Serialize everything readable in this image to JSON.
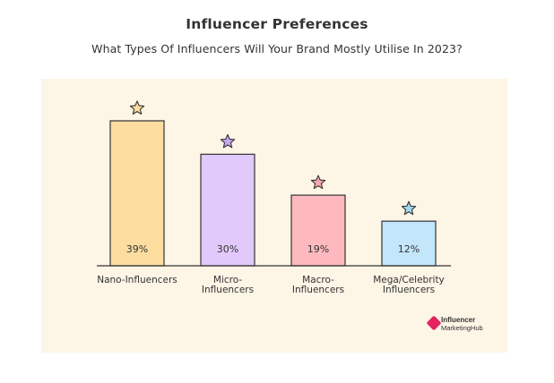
{
  "chart_data": {
    "type": "bar",
    "title": "Influencer Preferences",
    "subtitle": "What Types Of Influencers Will Your Brand Mostly Utilise In 2023?",
    "categories": [
      [
        "Nano-Influencers"
      ],
      [
        "Micro-",
        "Influencers"
      ],
      [
        "Macro-",
        "Influencers"
      ],
      [
        "Mega/Celebrity",
        "Influencers"
      ]
    ],
    "values": [
      39,
      30,
      19,
      12
    ],
    "value_labels": [
      "39%",
      "30%",
      "19%",
      "12%"
    ],
    "colors": [
      "#fddda0",
      "#e2c9fb",
      "#feb9be",
      "#c4e6fb"
    ],
    "star_colors": [
      "#fddda0",
      "#c9a8f5",
      "#f9a8b0",
      "#9fd8f0"
    ],
    "background": "#fdf5e6",
    "ylim": [
      0,
      39
    ],
    "grid": false,
    "legend": "none"
  },
  "logo": {
    "line1": "Influencer",
    "line2": "MarketingHub",
    "color": "#e5245f"
  }
}
